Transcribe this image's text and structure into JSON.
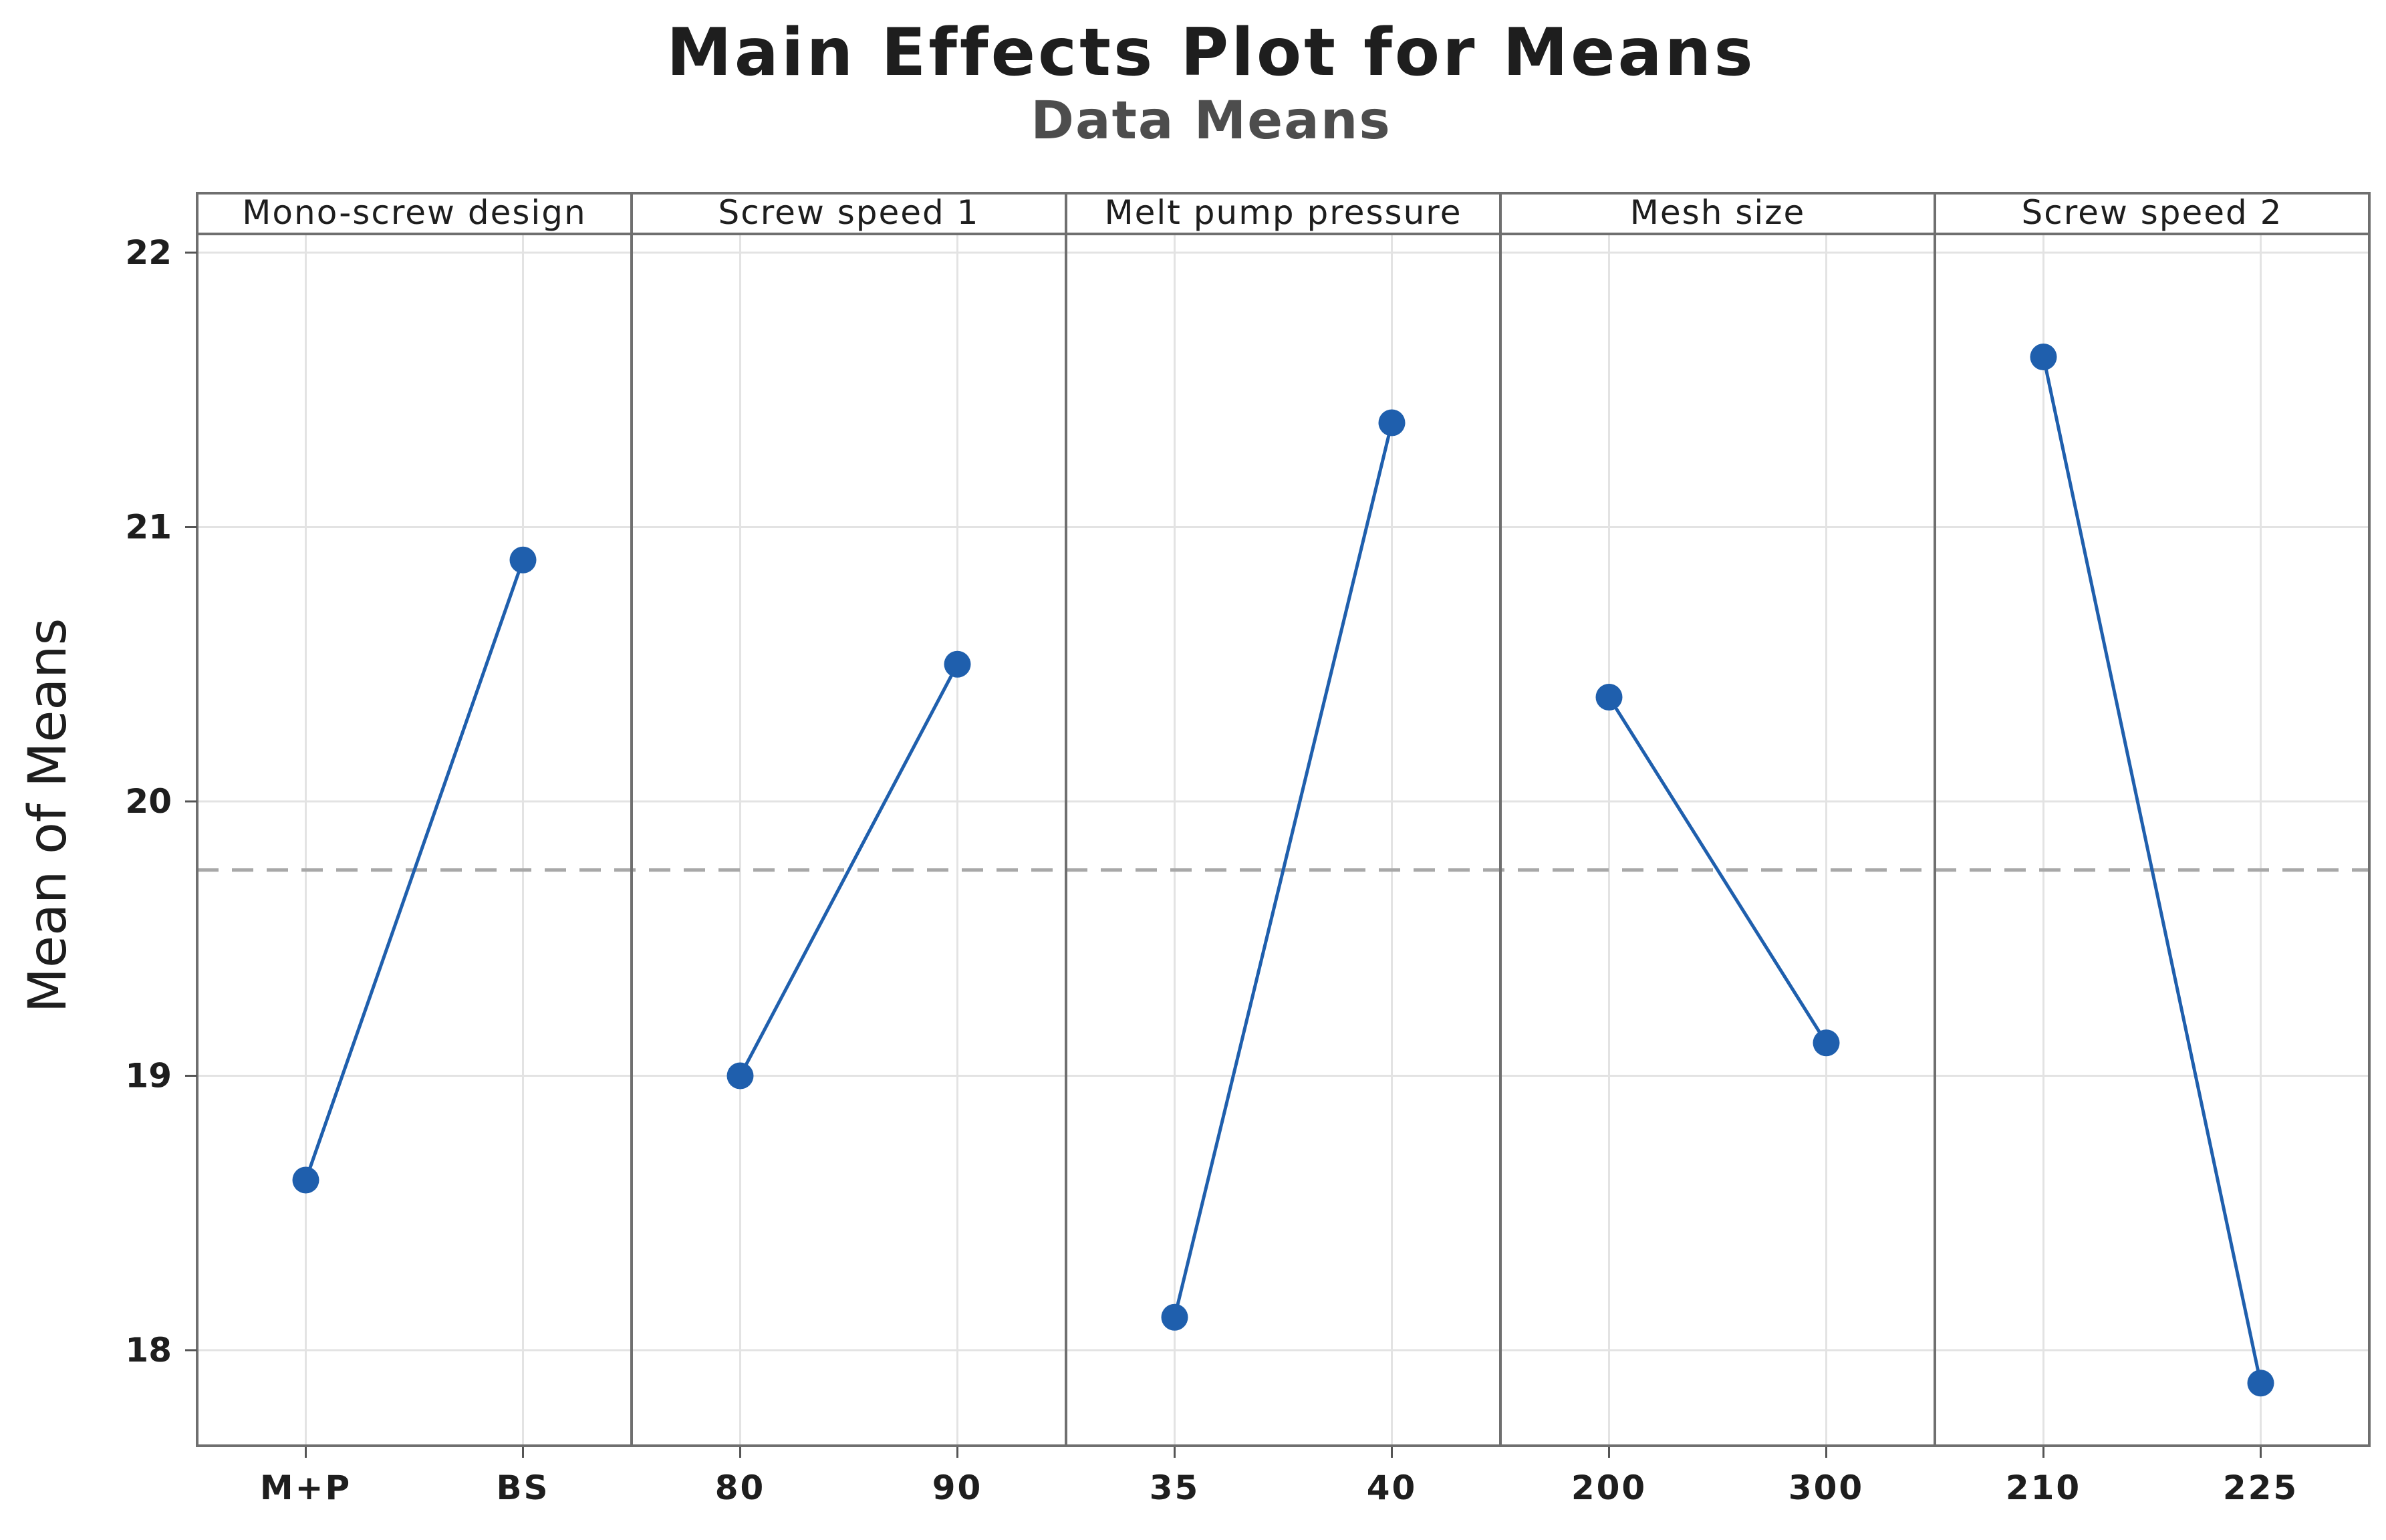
{
  "chart_data": {
    "type": "line",
    "title": "Main Effects Plot for Means",
    "subtitle": "Data Means",
    "ylabel": "Mean of Means",
    "ylim": [
      17.65,
      22.05
    ],
    "yticks": [
      18,
      19,
      20,
      21,
      22
    ],
    "grid": true,
    "reference_line": 19.75,
    "series_color": "#1f5fad",
    "reference_color": "#a8a8a8",
    "panels": [
      {
        "factor": "Mono-screw design",
        "levels": [
          "M+P",
          "BS"
        ],
        "values": [
          18.62,
          20.88
        ]
      },
      {
        "factor": "Screw speed 1",
        "levels": [
          "80",
          "90"
        ],
        "values": [
          19.0,
          20.5
        ]
      },
      {
        "factor": "Melt pump pressure",
        "levels": [
          "35",
          "40"
        ],
        "values": [
          18.12,
          21.38
        ]
      },
      {
        "factor": "Mesh size",
        "levels": [
          "200",
          "300"
        ],
        "values": [
          20.38,
          19.12
        ]
      },
      {
        "factor": "Screw speed 2",
        "levels": [
          "210",
          "225"
        ],
        "values": [
          21.62,
          17.88
        ]
      }
    ]
  }
}
